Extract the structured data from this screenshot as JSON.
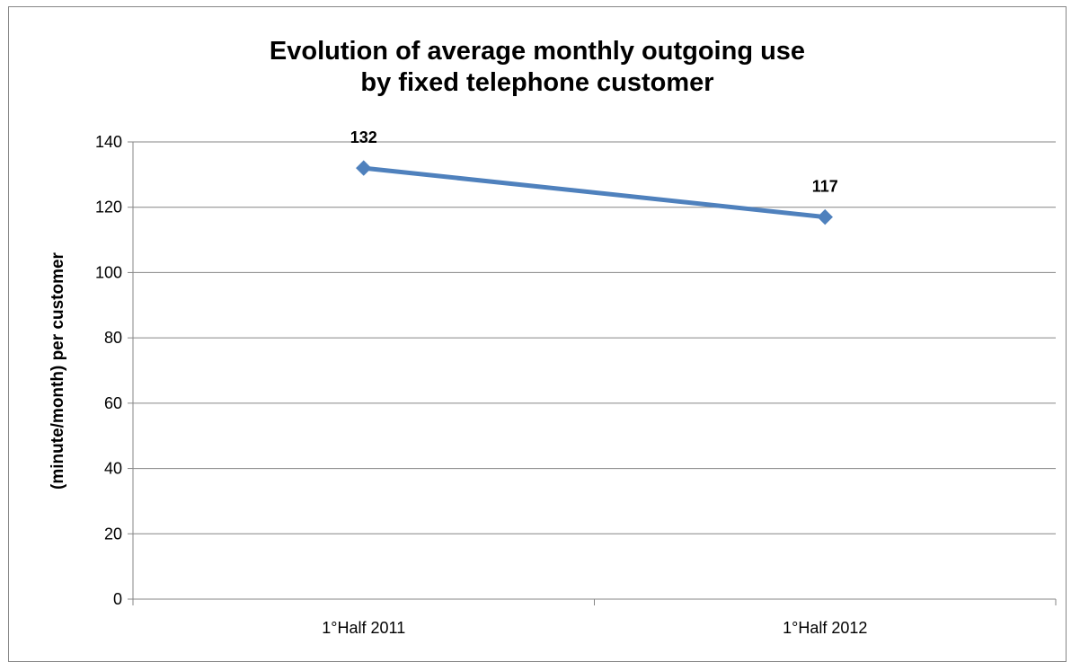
{
  "chart_data": {
    "type": "line",
    "title_lines": [
      "Evolution of average monthly outgoing use",
      "by fixed telephone customer"
    ],
    "categories": [
      "1°Half 2011",
      "1°Half 2012"
    ],
    "series": [
      {
        "values": [
          132,
          117
        ],
        "data_labels": [
          "132",
          "117"
        ],
        "color": "#4F81BD",
        "marker": "diamond"
      }
    ],
    "xlabel": "",
    "ylabel": "(minute/month) per customer",
    "ylim": [
      0,
      140
    ],
    "yticks": [
      0,
      20,
      40,
      60,
      80,
      100,
      120,
      140
    ],
    "gridlines": true,
    "gridline_color": "#868686",
    "legend": "none"
  }
}
